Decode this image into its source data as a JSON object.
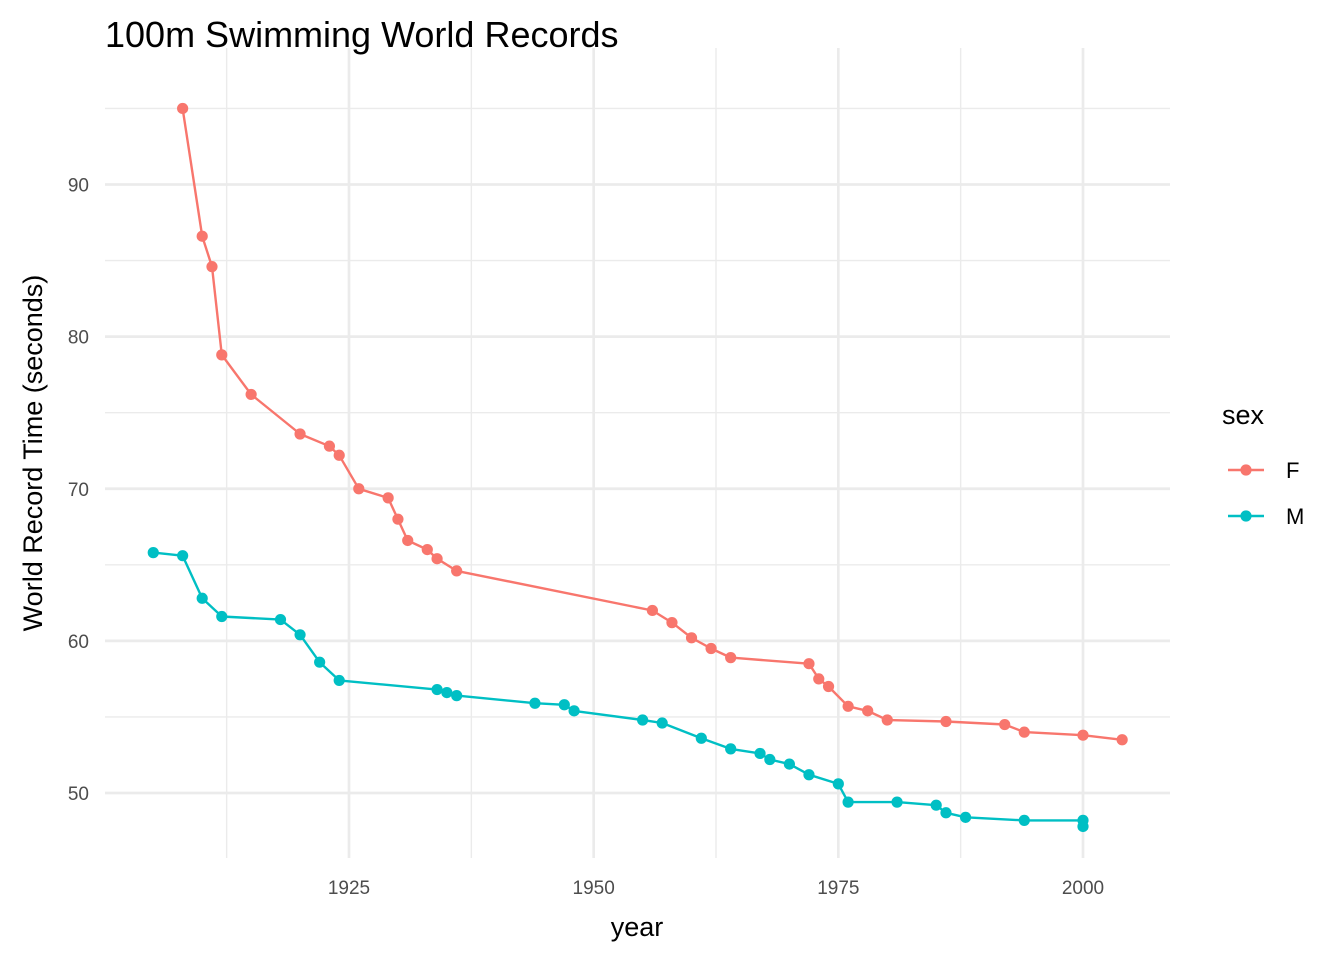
{
  "chart_data": {
    "type": "line",
    "title": "100m Swimming World Records",
    "xlabel": "year",
    "ylabel": "World Record Time (seconds)",
    "xlim": [
      1900.5,
      2008
    ],
    "ylim": [
      45.5,
      97.5
    ],
    "x_ticks": [
      1925,
      1950,
      1975,
      2000
    ],
    "x_tick_labels": [
      "1925",
      "1950",
      "1975",
      "2000"
    ],
    "x_minor_ticks": [
      1912.5,
      1937.5,
      1962.5,
      1987.5
    ],
    "y_ticks": [
      50,
      60,
      70,
      80,
      90
    ],
    "y_tick_labels": [
      "50",
      "60",
      "70",
      "80",
      "90"
    ],
    "y_minor_ticks": [
      55,
      65,
      75,
      85,
      95
    ],
    "grid": true,
    "legend": {
      "title": "sex",
      "placement": "right",
      "entries": [
        "F",
        "M"
      ]
    },
    "series": [
      {
        "name": "F",
        "color": "#F8766D",
        "x": [
          1908,
          1910,
          1911,
          1912,
          1915,
          1920,
          1923,
          1924,
          1926,
          1929,
          1930,
          1931,
          1933,
          1934,
          1936,
          1956,
          1958,
          1960,
          1962,
          1964,
          1972,
          1973,
          1974,
          1976,
          1978,
          1980,
          1986,
          1992,
          1994,
          2000,
          2004
        ],
        "y": [
          95.0,
          86.6,
          84.6,
          78.8,
          76.2,
          73.6,
          72.8,
          72.2,
          70.0,
          69.4,
          68.0,
          66.6,
          66.0,
          65.4,
          64.6,
          62.0,
          61.2,
          60.2,
          59.5,
          58.9,
          58.5,
          57.5,
          57.0,
          55.7,
          55.4,
          54.8,
          54.7,
          54.5,
          54.0,
          53.8,
          53.5
        ]
      },
      {
        "name": "M",
        "color": "#00BFC4",
        "x": [
          1905,
          1908,
          1910,
          1912,
          1918,
          1920,
          1922,
          1924,
          1934,
          1935,
          1936,
          1944,
          1947,
          1948,
          1955,
          1957,
          1961,
          1964,
          1967,
          1968,
          1970,
          1972,
          1975,
          1976,
          1981,
          1985,
          1986,
          1988,
          1994,
          2000,
          2000
        ],
        "y": [
          65.8,
          65.6,
          62.8,
          61.6,
          61.4,
          60.4,
          58.6,
          57.4,
          56.8,
          56.6,
          56.4,
          55.9,
          55.8,
          55.4,
          54.8,
          54.6,
          53.6,
          52.9,
          52.6,
          52.2,
          51.9,
          51.2,
          50.6,
          49.4,
          49.4,
          49.2,
          48.7,
          48.4,
          48.2,
          48.2,
          47.8
        ]
      }
    ]
  }
}
